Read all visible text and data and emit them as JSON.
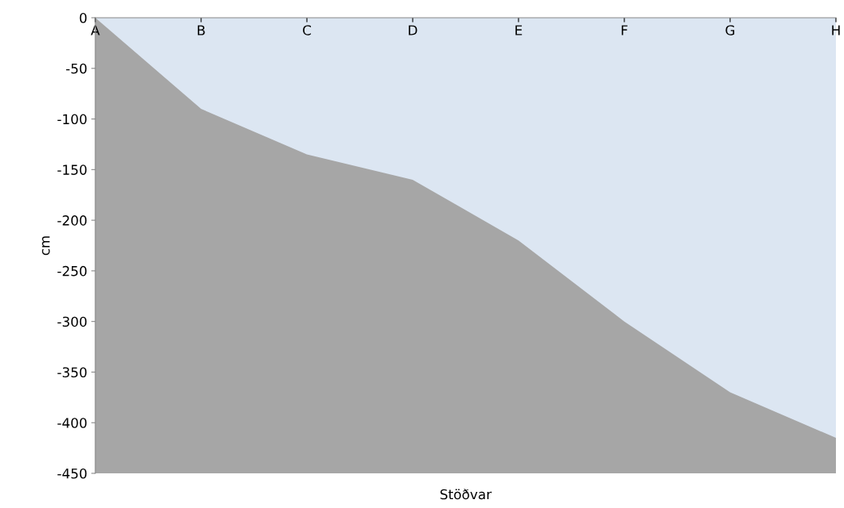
{
  "chart_data": {
    "type": "area",
    "xlabel": "Stöðvar",
    "ylabel": "cm",
    "categories": [
      "A",
      "B",
      "C",
      "D",
      "E",
      "F",
      "G",
      "H"
    ],
    "series": [
      {
        "color": "#dce6f2",
        "values": [
          0,
          -90,
          -135,
          -160,
          -220,
          -300,
          -370,
          -415
        ]
      }
    ],
    "ylim": [
      -450,
      0
    ],
    "yticks": [
      -450,
      -400,
      -350,
      -300,
      -250,
      -200,
      -150,
      -100,
      -50,
      0
    ],
    "grid": false
  }
}
